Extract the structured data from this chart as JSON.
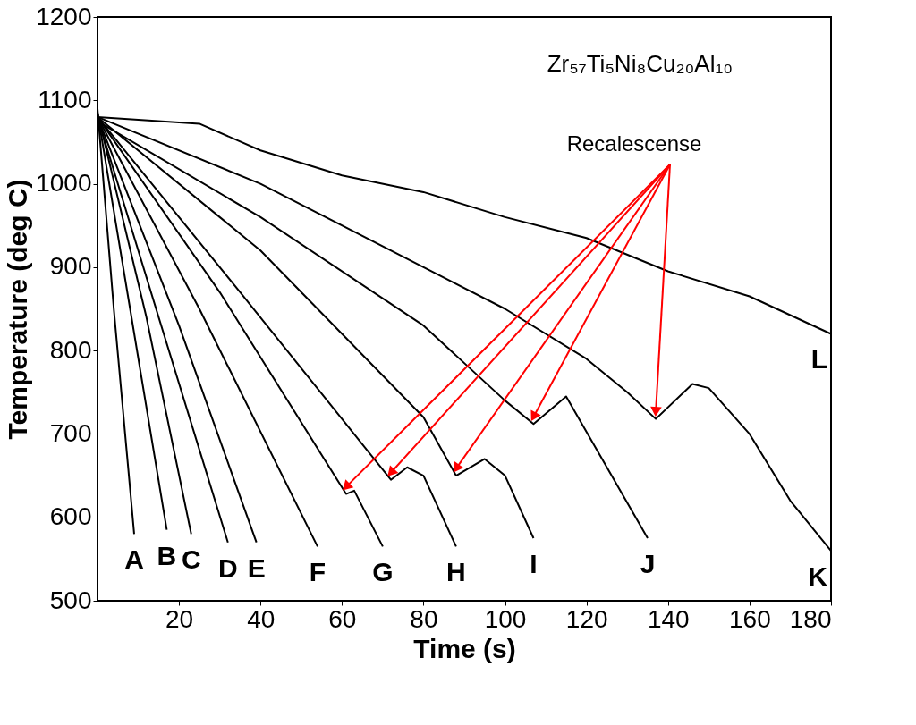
{
  "chart_data": {
    "type": "line",
    "xlabel": "Time (s)",
    "ylabel": "Temperature (deg C)",
    "xlim": [
      0,
      180
    ],
    "ylim": [
      500,
      1200
    ],
    "xticks": [
      20,
      40,
      60,
      80,
      100,
      120,
      140,
      160,
      180
    ],
    "yticks": [
      500,
      600,
      700,
      800,
      900,
      1000,
      1100,
      1200
    ],
    "grid": false,
    "marker": "none",
    "line_style": "solid",
    "annotations": [
      "Zr₅₇Ti₅Ni₈Cu₂₀Al₁₀",
      {
        "text": "Recalescense",
        "x": 137,
        "y": 718
      }
    ],
    "series": [
      {
        "name": "A",
        "color": "#000000",
        "x": [
          0,
          4,
          9
        ],
        "values": [
          1090,
          850,
          580
        ]
      },
      {
        "name": "B",
        "color": "#000000",
        "x": [
          0,
          8,
          17
        ],
        "values": [
          1085,
          850,
          585
        ]
      },
      {
        "name": "C",
        "color": "#000000",
        "x": [
          0,
          12,
          23
        ],
        "values": [
          1085,
          840,
          580
        ]
      },
      {
        "name": "D",
        "color": "#000000",
        "x": [
          0,
          15,
          32
        ],
        "values": [
          1080,
          840,
          570
        ]
      },
      {
        "name": "E",
        "color": "#000000",
        "x": [
          0,
          20,
          39
        ],
        "values": [
          1080,
          830,
          570
        ]
      },
      {
        "name": "F",
        "color": "#000000",
        "x": [
          0,
          25,
          54
        ],
        "values": [
          1080,
          850,
          565
        ]
      },
      {
        "name": "G",
        "color": "#000000",
        "x": [
          0,
          30,
          61,
          63,
          70
        ],
        "values": [
          1080,
          870,
          628,
          632,
          565
        ]
      },
      {
        "name": "H",
        "color": "#000000",
        "x": [
          0,
          35,
          72,
          76,
          80,
          88
        ],
        "values": [
          1080,
          870,
          645,
          660,
          650,
          565
        ]
      },
      {
        "name": "I",
        "color": "#000000",
        "x": [
          0,
          40,
          80,
          88,
          95,
          100,
          107
        ],
        "values": [
          1080,
          920,
          720,
          650,
          670,
          650,
          575
        ]
      },
      {
        "name": "J",
        "color": "#000000",
        "x": [
          0,
          40,
          80,
          100,
          107,
          115,
          125,
          135
        ],
        "values": [
          1075,
          960,
          830,
          740,
          712,
          745,
          660,
          575
        ]
      },
      {
        "name": "K",
        "color": "#000000",
        "x": [
          0,
          40,
          80,
          100,
          120,
          130,
          137,
          146,
          150,
          160,
          170,
          180
        ],
        "values": [
          1080,
          1000,
          900,
          850,
          790,
          750,
          718,
          760,
          755,
          700,
          620,
          560
        ]
      },
      {
        "name": "L",
        "color": "#000000",
        "x": [
          0,
          25,
          40,
          60,
          80,
          100,
          120,
          140,
          160,
          180
        ],
        "values": [
          1080,
          1072,
          1040,
          1010,
          990,
          960,
          935,
          895,
          865,
          820
        ]
      }
    ]
  }
}
